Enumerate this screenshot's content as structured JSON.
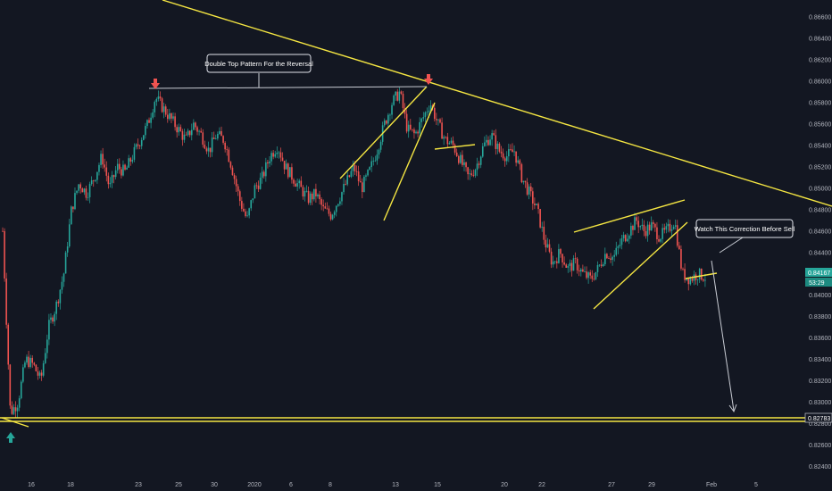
{
  "chart_data": {
    "type": "candlestick",
    "symbol_price_tag": "0.84167",
    "countdown_tag": "53:29",
    "level_tag": "0.82783",
    "y_ticks": [
      0.866,
      0.864,
      0.862,
      0.86,
      0.858,
      0.856,
      0.854,
      0.852,
      0.85,
      0.848,
      0.846,
      0.844,
      0.842,
      0.84,
      0.838,
      0.836,
      0.834,
      0.832,
      0.83,
      0.828,
      0.826,
      0.824
    ],
    "y_tick_labels": [
      "0.86600",
      "0.86400",
      "0.86200",
      "0.86000",
      "0.85800",
      "0.85600",
      "0.85400",
      "0.85200",
      "0.85000",
      "0.84800",
      "0.84600",
      "0.84400",
      "0.84200",
      "0.84000",
      "0.83800",
      "0.83600",
      "0.83400",
      "0.83200",
      "0.83000",
      "0.82800",
      "0.82600",
      "0.82400"
    ],
    "ylim": [
      0.8232,
      0.8676
    ],
    "x_labels": [
      "16",
      "18",
      "23",
      "25",
      "30",
      "2020",
      "6",
      "8",
      "13",
      "15",
      "20",
      "22",
      "27",
      "29",
      "Feb",
      "5"
    ],
    "path_points": [
      [
        0.846,
        0
      ],
      [
        0.829,
        2
      ],
      [
        0.83,
        4
      ],
      [
        0.834,
        6
      ],
      [
        0.8335,
        8
      ],
      [
        0.832,
        10
      ],
      [
        0.837,
        12
      ],
      [
        0.839,
        14
      ],
      [
        0.842,
        16
      ],
      [
        0.848,
        18
      ],
      [
        0.8505,
        20
      ],
      [
        0.8495,
        22
      ],
      [
        0.851,
        24
      ],
      [
        0.853,
        26
      ],
      [
        0.85,
        28
      ],
      [
        0.852,
        30
      ],
      [
        0.8515,
        32
      ],
      [
        0.853,
        34
      ],
      [
        0.8545,
        36
      ],
      [
        0.856,
        38
      ],
      [
        0.8585,
        40
      ],
      [
        0.8575,
        42
      ],
      [
        0.8565,
        44
      ],
      [
        0.8555,
        46
      ],
      [
        0.8545,
        48
      ],
      [
        0.856,
        50
      ],
      [
        0.855,
        52
      ],
      [
        0.8535,
        54
      ],
      [
        0.855,
        56
      ],
      [
        0.8545,
        58
      ],
      [
        0.852,
        60
      ],
      [
        0.849,
        62
      ],
      [
        0.847,
        64
      ],
      [
        0.85,
        66
      ],
      [
        0.851,
        68
      ],
      [
        0.853,
        70
      ],
      [
        0.854,
        72
      ],
      [
        0.852,
        74
      ],
      [
        0.851,
        76
      ],
      [
        0.85,
        78
      ],
      [
        0.849,
        80
      ],
      [
        0.8495,
        82
      ],
      [
        0.848,
        84
      ],
      [
        0.8475,
        86
      ],
      [
        0.849,
        88
      ],
      [
        0.8505,
        90
      ],
      [
        0.852,
        92
      ],
      [
        0.85,
        94
      ],
      [
        0.8515,
        96
      ],
      [
        0.8535,
        98
      ],
      [
        0.856,
        100
      ],
      [
        0.858,
        102
      ],
      [
        0.859,
        104
      ],
      [
        0.8555,
        106
      ],
      [
        0.855,
        108
      ],
      [
        0.8565,
        110
      ],
      [
        0.858,
        112
      ],
      [
        0.856,
        114
      ],
      [
        0.8545,
        116
      ],
      [
        0.854,
        118
      ],
      [
        0.8525,
        120
      ],
      [
        0.851,
        122
      ],
      [
        0.852,
        124
      ],
      [
        0.854,
        126
      ],
      [
        0.855,
        128
      ],
      [
        0.8535,
        130
      ],
      [
        0.853,
        132
      ],
      [
        0.8535,
        134
      ],
      [
        0.851,
        136
      ],
      [
        0.8495,
        138
      ],
      [
        0.848,
        140
      ],
      [
        0.845,
        142
      ],
      [
        0.843,
        144
      ],
      [
        0.844,
        146
      ],
      [
        0.8425,
        148
      ],
      [
        0.843,
        150
      ],
      [
        0.842,
        152
      ],
      [
        0.8415,
        154
      ],
      [
        0.8425,
        156
      ],
      [
        0.844,
        158
      ],
      [
        0.8435,
        160
      ],
      [
        0.845,
        162
      ],
      [
        0.846,
        164
      ],
      [
        0.847,
        166
      ],
      [
        0.846,
        168
      ],
      [
        0.8465,
        170
      ],
      [
        0.8455,
        172
      ],
      [
        0.846,
        174
      ],
      [
        0.847,
        176
      ],
      [
        0.842,
        178
      ],
      [
        0.8415,
        180
      ],
      [
        0.842,
        182
      ],
      [
        0.8417,
        184
      ]
    ],
    "annotations": [
      {
        "text": "Double Top Pattern For the Reversal"
      },
      {
        "text": "Watch This Correction Before Sell"
      }
    ],
    "colors": {
      "up": "#26a69a",
      "down": "#ef5350",
      "trendline": "#f5e642",
      "background": "#131722",
      "axis_text": "#b2b5be",
      "price_tag": "#26a69a"
    }
  }
}
